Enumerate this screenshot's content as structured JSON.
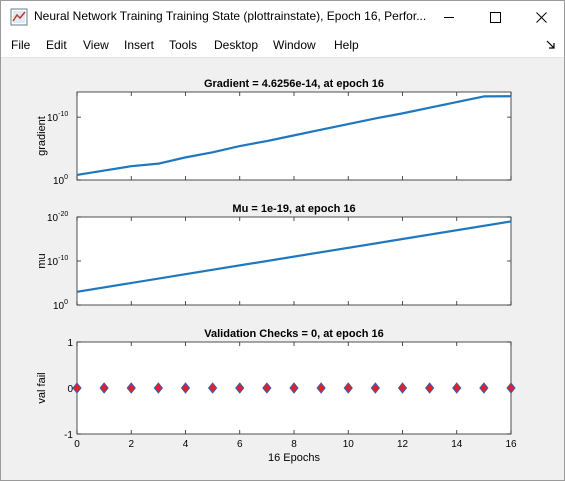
{
  "window": {
    "title": "Neural Network Training Training State (plottrainstate), Epoch 16, Perfor..."
  },
  "menu": [
    "File",
    "Edit",
    "View",
    "Insert",
    "Tools",
    "Desktop",
    "Window",
    "Help"
  ],
  "colors": {
    "line": "#1f77c0",
    "marker_fill": "#e0202a",
    "marker_edge": "#3060b0",
    "figure_bg": "#f0f0f0"
  },
  "icons": {
    "app": "matlab-figure-icon",
    "minimize": "minimize-icon",
    "maximize": "maximize-icon",
    "close": "close-icon",
    "dock": "dock-arrow-icon"
  },
  "chart_data": [
    {
      "type": "line",
      "title": "Gradient = 4.6256e-14, at epoch 16",
      "xlabel": "",
      "ylabel": "gradient",
      "yscale": "log",
      "xlim": [
        0,
        16
      ],
      "ylim_exp": [
        -14,
        0
      ],
      "ytick_exp": [
        0,
        -10
      ],
      "ytick_labels": [
        [
          "10",
          "0"
        ],
        [
          "10",
          "-10"
        ]
      ],
      "x": [
        0,
        1,
        2,
        3,
        4,
        5,
        6,
        7,
        8,
        9,
        10,
        11,
        12,
        13,
        14,
        15,
        16
      ],
      "y_exp": [
        -0.8,
        -1.5,
        -2.2,
        -2.6,
        -3.6,
        -4.4,
        -5.4,
        -6.2,
        -7.1,
        -8.0,
        -8.9,
        -9.8,
        -10.6,
        -11.5,
        -12.4,
        -13.3,
        -13.33
      ]
    },
    {
      "type": "line",
      "title": "Mu = 1e-19, at epoch 16",
      "xlabel": "",
      "ylabel": "mu",
      "yscale": "log",
      "xlim": [
        0,
        16
      ],
      "ylim_exp": [
        -20,
        0
      ],
      "ytick_exp": [
        0,
        -10,
        -20
      ],
      "ytick_labels": [
        [
          "10",
          "0"
        ],
        [
          "10",
          "-10"
        ],
        [
          "10",
          "-20"
        ]
      ],
      "x": [
        0,
        16
      ],
      "y_exp": [
        -3,
        -19
      ]
    },
    {
      "type": "scatter",
      "title": "Validation Checks = 0, at epoch 16",
      "xlabel": "16 Epochs",
      "ylabel": "val fail",
      "xlim": [
        0,
        16
      ],
      "ylim": [
        -1,
        1
      ],
      "xtick_labels": [
        "0",
        "2",
        "4",
        "6",
        "8",
        "10",
        "12",
        "14",
        "16"
      ],
      "ytick_labels": [
        "1",
        "0",
        "-1"
      ],
      "x": [
        0,
        1,
        2,
        3,
        4,
        5,
        6,
        7,
        8,
        9,
        10,
        11,
        12,
        13,
        14,
        15,
        16
      ],
      "y": [
        0,
        0,
        0,
        0,
        0,
        0,
        0,
        0,
        0,
        0,
        0,
        0,
        0,
        0,
        0,
        0,
        0
      ]
    }
  ]
}
